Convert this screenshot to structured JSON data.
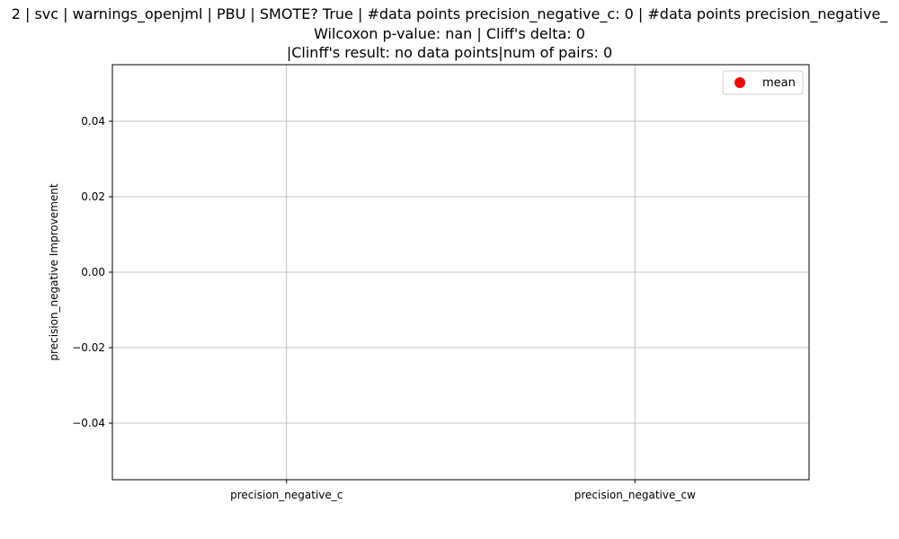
{
  "chart_data": {
    "type": "scatter",
    "title_lines": [
      "2 | svc | warnings_openjml | PBU | SMOTE? True | #data points precision_negative_c: 0 | #data points precision_negative_",
      "Wilcoxon p-value: nan | Cliff's delta: 0",
      "|Clinff's result: no data points|num of pairs: 0"
    ],
    "xlabel": "",
    "ylabel": "precision_negative Improvement",
    "categories": [
      "precision_negative_c",
      "precision_negative_cw"
    ],
    "ylim": [
      -0.055,
      0.055
    ],
    "yticks": [
      -0.04,
      -0.02,
      0.0,
      0.02,
      0.04
    ],
    "ytick_labels": [
      "−0.04",
      "−0.02",
      "0.00",
      "0.02",
      "0.04"
    ],
    "grid": true,
    "legend": {
      "position": "top-right",
      "entries": [
        {
          "label": "mean",
          "color": "#ff0000",
          "marker": "circle"
        }
      ]
    },
    "series": [
      {
        "name": "mean",
        "color": "#ff0000",
        "values": []
      }
    ]
  }
}
